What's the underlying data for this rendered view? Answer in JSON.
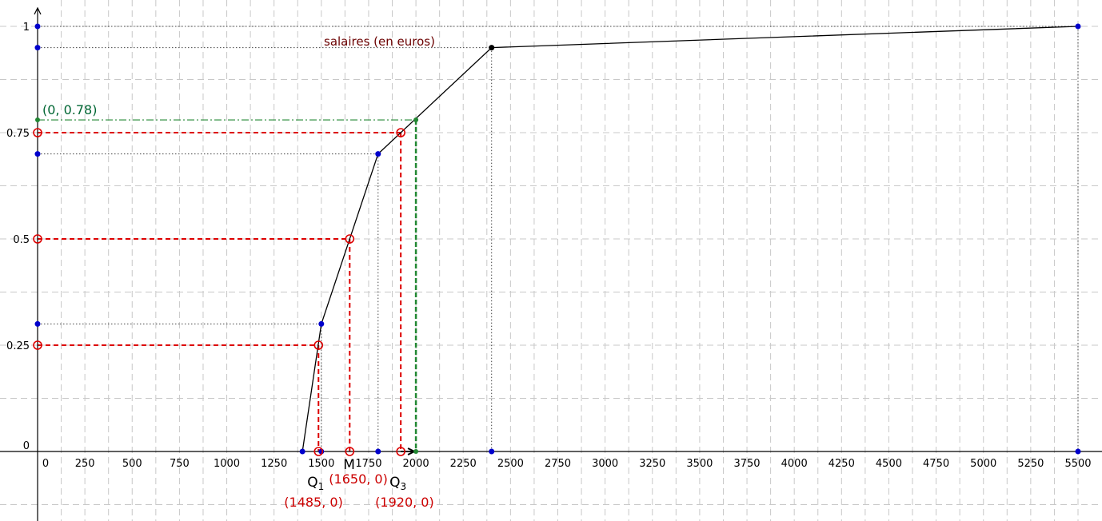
{
  "chart_data": {
    "type": "line",
    "title": "salaires (en euros)",
    "xlim": [
      -50,
      5600
    ],
    "ylim": [
      -0.13,
      1.04
    ],
    "grid": true,
    "x_ticks": [
      {
        "value": 0,
        "label": "0"
      },
      {
        "value": 250,
        "label": "250"
      },
      {
        "value": 500,
        "label": "500"
      },
      {
        "value": 750,
        "label": "750"
      },
      {
        "value": 1000,
        "label": "1000"
      },
      {
        "value": 1250,
        "label": "1250"
      },
      {
        "value": 1500,
        "label": "1500"
      },
      {
        "value": 1750,
        "label": "1750"
      },
      {
        "value": 2000,
        "label": "2000"
      },
      {
        "value": 2250,
        "label": "2250"
      },
      {
        "value": 2500,
        "label": "2500"
      },
      {
        "value": 2750,
        "label": "2750"
      },
      {
        "value": 3000,
        "label": "3000"
      },
      {
        "value": 3250,
        "label": "3250"
      },
      {
        "value": 3500,
        "label": "3500"
      },
      {
        "value": 3750,
        "label": "3750"
      },
      {
        "value": 4000,
        "label": "4000"
      },
      {
        "value": 4250,
        "label": "4250"
      },
      {
        "value": 4500,
        "label": "4500"
      },
      {
        "value": 4750,
        "label": "4750"
      },
      {
        "value": 5000,
        "label": "5000"
      },
      {
        "value": 5250,
        "label": "5250"
      },
      {
        "value": 5500,
        "label": "5500"
      }
    ],
    "y_ticks": [
      {
        "value": 0,
        "label": "0"
      },
      {
        "value": 0.25,
        "label": "0.25"
      },
      {
        "value": 0.5,
        "label": "0.5"
      },
      {
        "value": 0.75,
        "label": "0.75"
      },
      {
        "value": 1,
        "label": "1"
      }
    ],
    "cumulative_curve": {
      "x": [
        1400,
        1500,
        1800,
        2400,
        5500
      ],
      "y": [
        0,
        0.3,
        0.7,
        0.95,
        1
      ]
    },
    "point_colors": [
      "#0000cc",
      "#0000cc",
      "#0000cc",
      "#000000",
      "#0000cc"
    ],
    "quartiles": [
      {
        "name": "Q",
        "sub": "1",
        "x": 1485,
        "y": 0.25,
        "coord_label": "(1485, 0)"
      },
      {
        "name": "M",
        "sub": "",
        "x": 1650,
        "y": 0.5,
        "coord_label": "(1650, 0)"
      },
      {
        "name": "Q",
        "sub": "3",
        "x": 1920,
        "y": 0.75,
        "coord_label": "(1920, 0)"
      }
    ],
    "green_point": {
      "x": 2000,
      "y": 0.78,
      "label": "(0, 0.78)"
    },
    "colors": {
      "curve": "#000000",
      "quartile": "#dd0000",
      "green": "#228833",
      "blue_point": "#0000cc",
      "grid": "#c8c8c8"
    }
  }
}
